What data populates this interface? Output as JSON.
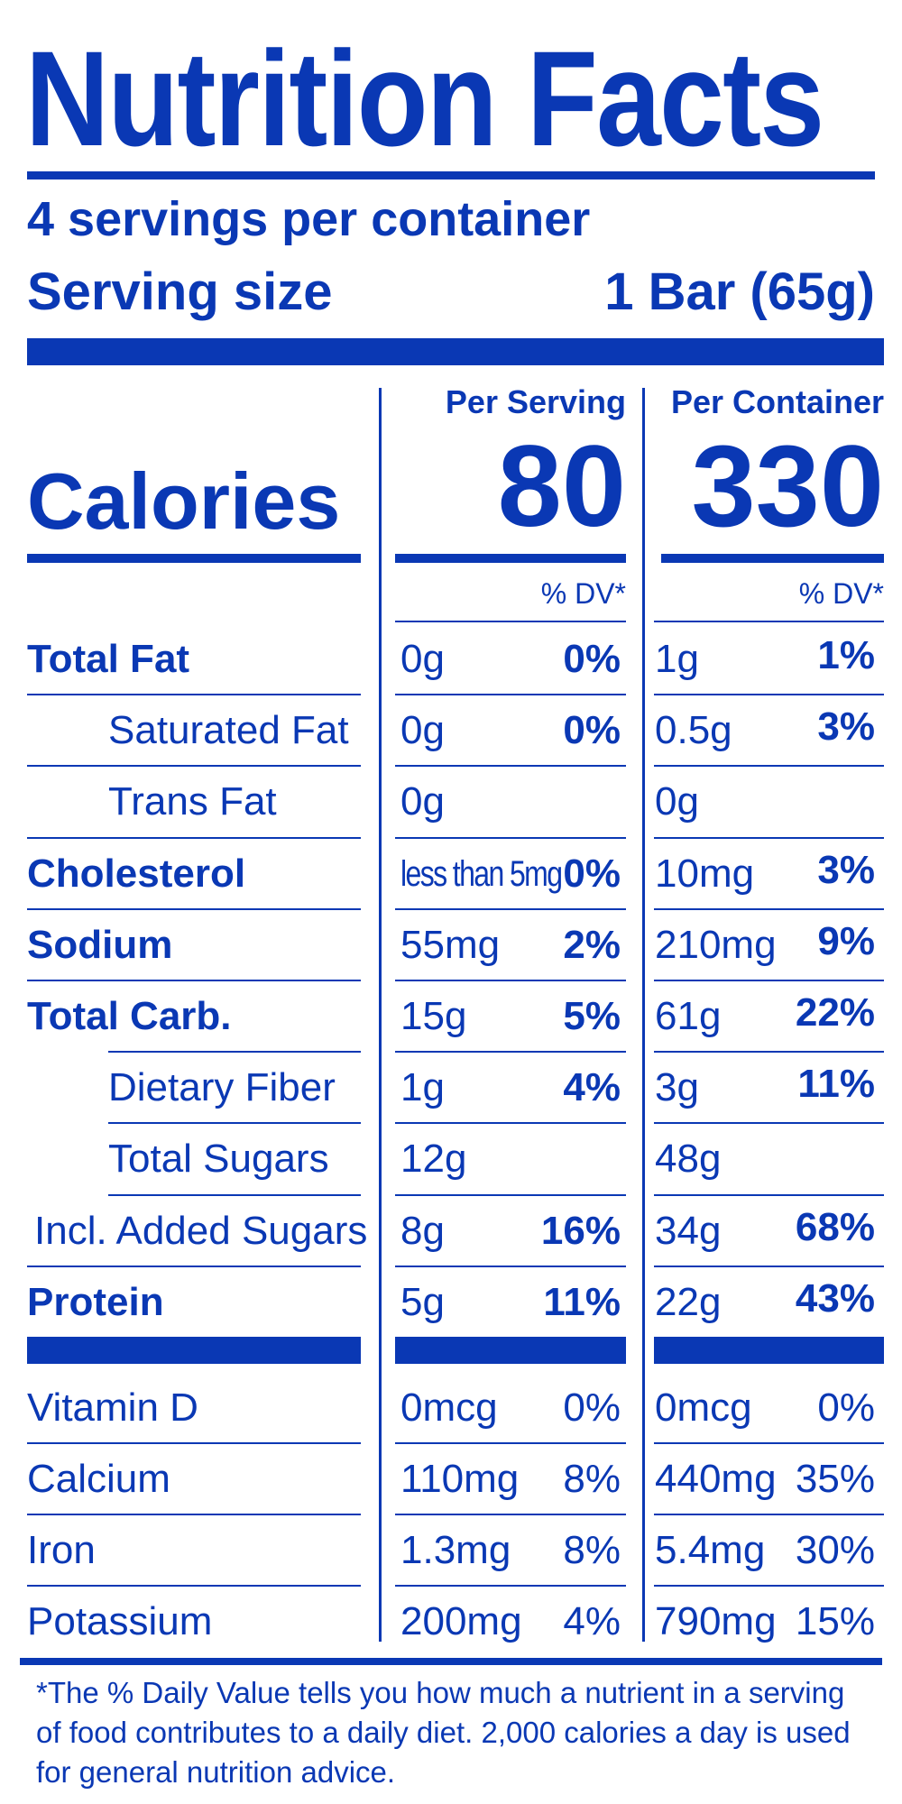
{
  "title": "Nutrition Facts",
  "servings_per_container": "4 servings per container",
  "serving_size_label": "Serving size",
  "serving_size_value": "1 Bar (65g)",
  "columns": {
    "per_serving": "Per Serving",
    "per_container": "Per Container"
  },
  "calories": {
    "label": "Calories",
    "per_serving": "80",
    "per_container": "330"
  },
  "dv_header": "% DV*",
  "nutrients": [
    {
      "label": "Total Fat",
      "serving_amount": "0g",
      "serving_dv": "0%",
      "container_amount": "1g",
      "container_dv": "1%"
    },
    {
      "label": "Saturated Fat",
      "serving_amount": "0g",
      "serving_dv": "0%",
      "container_amount": "0.5g",
      "container_dv": "3%"
    },
    {
      "label": "Trans Fat",
      "serving_amount": "0g",
      "serving_dv": "",
      "container_amount": "0g",
      "container_dv": ""
    },
    {
      "label": "Cholesterol",
      "serving_amount": "less than 5mg",
      "serving_dv": "0%",
      "container_amount": "10mg",
      "container_dv": "3%"
    },
    {
      "label": "Sodium",
      "serving_amount": "55mg",
      "serving_dv": "2%",
      "container_amount": "210mg",
      "container_dv": "9%"
    },
    {
      "label": "Total Carb.",
      "serving_amount": "15g",
      "serving_dv": "5%",
      "container_amount": "61g",
      "container_dv": "22%"
    },
    {
      "label": "Dietary Fiber",
      "serving_amount": "1g",
      "serving_dv": "4%",
      "container_amount": "3g",
      "container_dv": "11%"
    },
    {
      "label": "Total Sugars",
      "serving_amount": "12g",
      "serving_dv": "",
      "container_amount": "48g",
      "container_dv": ""
    },
    {
      "label": "Incl. Added Sugars",
      "serving_amount": "8g",
      "serving_dv": "16%",
      "container_amount": "34g",
      "container_dv": "68%"
    },
    {
      "label": "Protein",
      "serving_amount": "5g",
      "serving_dv": "11%",
      "container_amount": "22g",
      "container_dv": "43%"
    }
  ],
  "vitamins": [
    {
      "label": "Vitamin D",
      "serving_amount": "0mcg",
      "serving_dv": "0%",
      "container_amount": "0mcg",
      "container_dv": "0%"
    },
    {
      "label": "Calcium",
      "serving_amount": "110mg",
      "serving_dv": "8%",
      "container_amount": "440mg",
      "container_dv": "35%"
    },
    {
      "label": "Iron",
      "serving_amount": "1.3mg",
      "serving_dv": "8%",
      "container_amount": "5.4mg",
      "container_dv": "30%"
    },
    {
      "label": "Potassium",
      "serving_amount": "200mg",
      "serving_dv": "4%",
      "container_amount": "790mg",
      "container_dv": "15%"
    }
  ],
  "footnote": "*The % Daily Value tells you how much a nutrient in a serving of food contributes to a daily diet. 2,000 calories a day is used for general nutrition advice.",
  "colors": {
    "ink": "#0a38b4",
    "background": "#ffffff"
  }
}
